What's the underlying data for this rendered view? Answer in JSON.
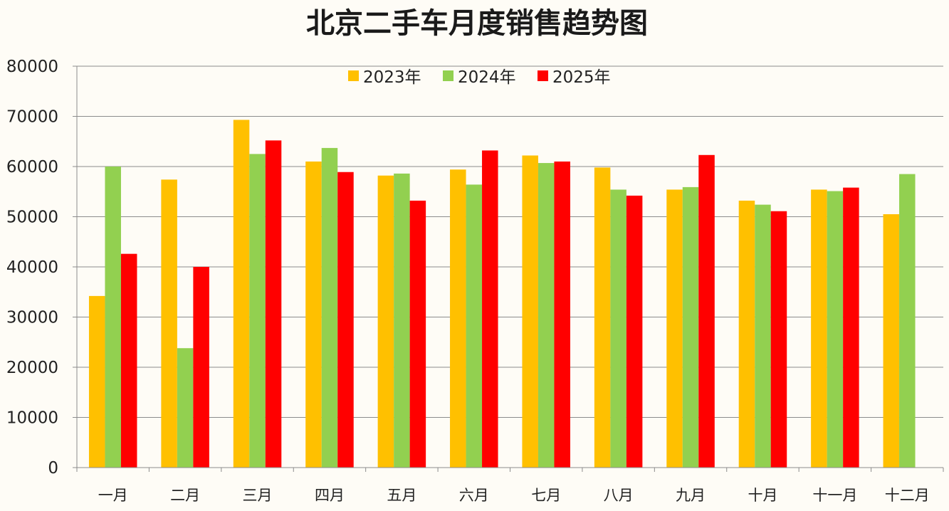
{
  "chart_data": {
    "type": "bar",
    "title": "北京二手车月度销售趋势图",
    "xlabel": "",
    "ylabel": "",
    "categories": [
      "一月",
      "二月",
      "三月",
      "四月",
      "五月",
      "六月",
      "七月",
      "八月",
      "九月",
      "十月",
      "十一月",
      "十二月"
    ],
    "series": [
      {
        "name": "2023年",
        "color": "#ffc000",
        "values": [
          34200,
          57400,
          69300,
          61000,
          58200,
          59400,
          62200,
          59800,
          55400,
          53200,
          55400,
          50500
        ]
      },
      {
        "name": "2024年",
        "color": "#92d050",
        "values": [
          60000,
          23800,
          62500,
          63700,
          58600,
          56400,
          60700,
          55400,
          55900,
          52400,
          55100,
          58500
        ]
      },
      {
        "name": "2025年",
        "color": "#ff0000",
        "values": [
          42600,
          40000,
          65200,
          58900,
          53200,
          63200,
          61000,
          54200,
          62300,
          51100,
          55800,
          null
        ]
      }
    ],
    "ylim": [
      0,
      80000
    ],
    "yticks": [
      "0",
      "10000",
      "20000",
      "30000",
      "40000",
      "50000",
      "60000",
      "70000",
      "80000"
    ],
    "grid": true,
    "legend_position": "top-center"
  }
}
